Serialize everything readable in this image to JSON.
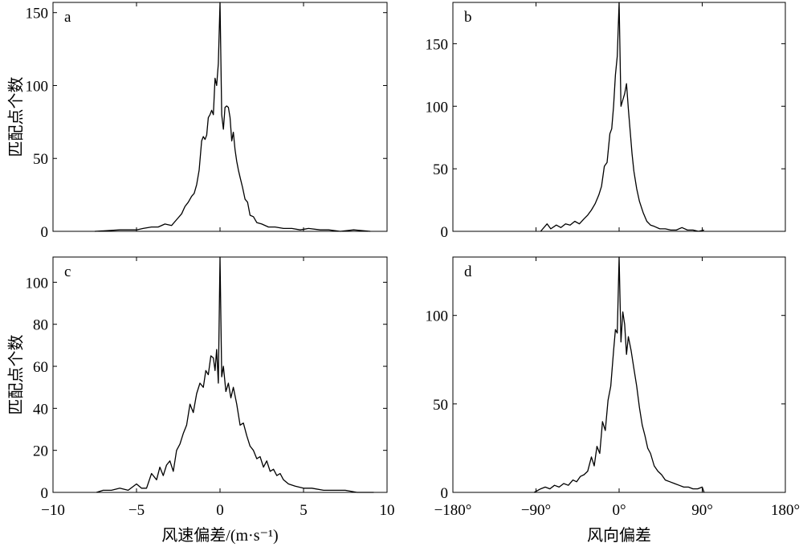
{
  "chart_data": [
    {
      "type": "line",
      "panel": "a",
      "xlabel": "",
      "ylabel": "匹配点个数",
      "xlim": [
        -10,
        10
      ],
      "ylim": [
        0,
        157
      ],
      "xticks": [
        -10,
        -5,
        0,
        5,
        10
      ],
      "xtick_labels": [
        "",
        "",
        "",
        "",
        ""
      ],
      "yticks": [
        0,
        50,
        100,
        150
      ],
      "ytick_labels": [
        "0",
        "50",
        "100",
        "150"
      ],
      "x": [
        -7.5,
        -6,
        -5,
        -4.6,
        -4.1,
        -3.7,
        -3.3,
        -2.9,
        -2.6,
        -2.3,
        -2.1,
        -1.9,
        -1.7,
        -1.55,
        -1.4,
        -1.25,
        -1.1,
        -1.0,
        -0.9,
        -0.8,
        -0.7,
        -0.6,
        -0.5,
        -0.4,
        -0.3,
        -0.2,
        -0.1,
        0,
        0.1,
        0.2,
        0.3,
        0.4,
        0.5,
        0.6,
        0.7,
        0.8,
        0.9,
        1.0,
        1.1,
        1.2,
        1.35,
        1.5,
        1.65,
        1.8,
        2.0,
        2.2,
        2.5,
        2.9,
        3.3,
        3.8,
        4.3,
        4.8,
        5.3,
        6.0,
        6.5,
        7.2,
        8.0,
        9.0
      ],
      "y": [
        0,
        1,
        1,
        2,
        3,
        3,
        5,
        4,
        8,
        12,
        17,
        20,
        24,
        26,
        32,
        42,
        62,
        65,
        63,
        66,
        78,
        80,
        83,
        80,
        105,
        100,
        115,
        157,
        80,
        70,
        85,
        86,
        85,
        78,
        62,
        68,
        56,
        48,
        42,
        37,
        30,
        22,
        20,
        11,
        10,
        6,
        5,
        3,
        3,
        2,
        2,
        1,
        2,
        1,
        1,
        0,
        1,
        0
      ]
    },
    {
      "type": "line",
      "panel": "b",
      "xlabel": "",
      "ylabel": "",
      "xlim": [
        -180,
        180
      ],
      "ylim": [
        0,
        183
      ],
      "xticks": [
        -180,
        -90,
        0,
        90,
        180
      ],
      "xtick_labels": [
        "",
        "",
        "",
        "",
        ""
      ],
      "yticks": [
        0,
        50,
        100,
        150
      ],
      "ytick_labels": [
        "0",
        "50",
        "100",
        "150"
      ],
      "x": [
        -85,
        -78,
        -74,
        -68,
        -63,
        -58,
        -53,
        -48,
        -43,
        -38,
        -34,
        -30,
        -26,
        -22,
        -19,
        -16,
        -13,
        -10,
        -8,
        -6,
        -4,
        -2,
        0,
        2,
        4,
        6,
        8,
        10,
        12,
        14,
        16,
        19,
        22,
        26,
        30,
        34,
        38,
        44,
        50,
        56,
        62,
        68,
        74,
        80,
        86,
        92
      ],
      "y": [
        0,
        6,
        2,
        5,
        3,
        6,
        5,
        8,
        6,
        10,
        13,
        17,
        22,
        29,
        36,
        52,
        55,
        78,
        82,
        100,
        125,
        140,
        183,
        100,
        105,
        110,
        118,
        98,
        80,
        62,
        48,
        34,
        24,
        15,
        8,
        5,
        4,
        2,
        2,
        1,
        1,
        3,
        1,
        1,
        0,
        1
      ]
    },
    {
      "type": "line",
      "panel": "c",
      "xlabel": "风速偏差/(m·s⁻¹)",
      "ylabel": "匹配点个数",
      "xlim": [
        -10,
        10
      ],
      "ylim": [
        0,
        112
      ],
      "xticks": [
        -10,
        -5,
        0,
        5,
        10
      ],
      "xtick_labels": [
        "−10",
        "−5",
        "0",
        "5",
        "10"
      ],
      "yticks": [
        0,
        20,
        40,
        60,
        80,
        100
      ],
      "ytick_labels": [
        "0",
        "20",
        "40",
        "60",
        "80",
        "100"
      ],
      "x": [
        -7.4,
        -7.0,
        -6.5,
        -6.0,
        -5.5,
        -5.0,
        -4.7,
        -4.4,
        -4.1,
        -3.8,
        -3.6,
        -3.4,
        -3.2,
        -3.0,
        -2.8,
        -2.6,
        -2.4,
        -2.2,
        -2.0,
        -1.8,
        -1.6,
        -1.4,
        -1.2,
        -1.0,
        -0.85,
        -0.7,
        -0.55,
        -0.4,
        -0.3,
        -0.2,
        -0.1,
        0,
        0.1,
        0.2,
        0.35,
        0.5,
        0.65,
        0.8,
        1.0,
        1.2,
        1.4,
        1.6,
        1.8,
        2.0,
        2.2,
        2.4,
        2.6,
        2.8,
        3.0,
        3.2,
        3.4,
        3.6,
        3.8,
        4.1,
        4.5,
        5.0,
        5.5,
        6.2,
        6.8,
        7.5,
        8.2,
        9.2
      ],
      "y": [
        0,
        1,
        1,
        2,
        1,
        4,
        2,
        2,
        9,
        6,
        12,
        8,
        13,
        15,
        10,
        20,
        23,
        28,
        32,
        42,
        38,
        47,
        52,
        50,
        58,
        56,
        65,
        64,
        58,
        68,
        52,
        112,
        55,
        60,
        48,
        52,
        45,
        50,
        42,
        32,
        33,
        27,
        22,
        20,
        16,
        17,
        12,
        15,
        10,
        11,
        8,
        9,
        6,
        4,
        3,
        2,
        2,
        1,
        1,
        1,
        0,
        0
      ]
    },
    {
      "type": "line",
      "panel": "d",
      "xlabel": "风向偏差",
      "ylabel": "",
      "xlim": [
        -180,
        180
      ],
      "ylim": [
        0,
        133
      ],
      "xticks": [
        -180,
        -90,
        0,
        90,
        180
      ],
      "xtick_labels": [
        "−180°",
        "−90°",
        "0°",
        "90°",
        "180°"
      ],
      "yticks": [
        0,
        50,
        100
      ],
      "ytick_labels": [
        "0",
        "50",
        "100"
      ],
      "x": [
        -92,
        -85,
        -80,
        -75,
        -70,
        -65,
        -60,
        -55,
        -50,
        -46,
        -42,
        -38,
        -34,
        -30,
        -27,
        -24,
        -21,
        -18,
        -15,
        -12,
        -9,
        -6,
        -4,
        -2,
        0,
        2,
        4,
        6,
        8,
        10,
        13,
        16,
        19,
        22,
        25,
        28,
        31,
        34,
        38,
        42,
        46,
        50,
        55,
        60,
        65,
        70,
        75,
        80,
        85,
        90,
        92
      ],
      "y": [
        0,
        2,
        3,
        2,
        4,
        3,
        5,
        4,
        7,
        6,
        9,
        10,
        12,
        20,
        15,
        26,
        22,
        40,
        35,
        52,
        60,
        80,
        92,
        90,
        133,
        85,
        102,
        95,
        78,
        88,
        80,
        70,
        60,
        48,
        38,
        32,
        25,
        22,
        15,
        12,
        10,
        7,
        6,
        5,
        4,
        3,
        3,
        2,
        2,
        3,
        0
      ]
    }
  ]
}
